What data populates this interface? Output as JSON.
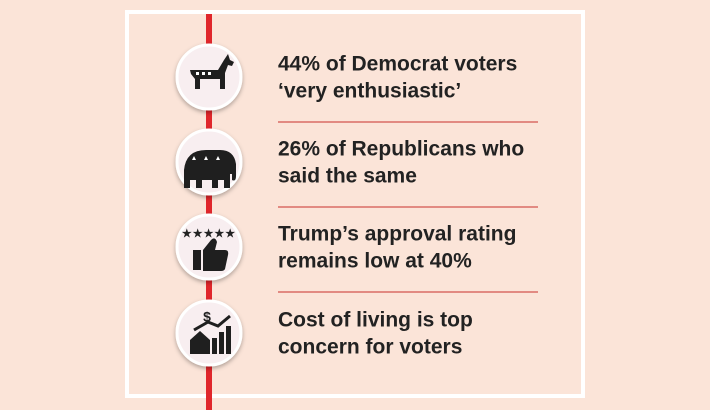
{
  "items": [
    {
      "lines": [
        "44% of Democrat voters",
        "‘very enthusiastic’"
      ]
    },
    {
      "lines": [
        "26% of Republicans who",
        "said the same"
      ]
    },
    {
      "lines": [
        "Trump’s approval rating",
        "remains low at 40%"
      ]
    },
    {
      "lines": [
        "Cost of living is top",
        "concern for voters"
      ]
    }
  ]
}
